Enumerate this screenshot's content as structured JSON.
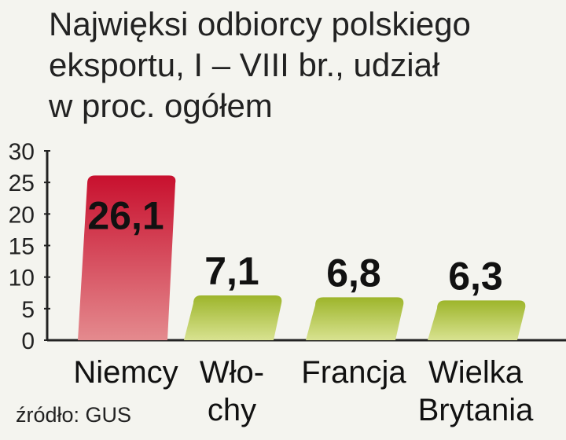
{
  "chart_data": {
    "type": "bar",
    "title": [
      "Najwięksi odbiorcy polskiego",
      "eksportu, I – VIII br., udział",
      "w proc. ogółem"
    ],
    "categories": [
      [
        "Niemcy"
      ],
      [
        "Wło-",
        "chy"
      ],
      [
        "Francja"
      ],
      [
        "Wielka",
        "Brytania"
      ]
    ],
    "values": [
      26.1,
      7.1,
      6.8,
      6.3
    ],
    "value_labels": [
      "26,1",
      "7,1",
      "6,8",
      "6,3"
    ],
    "colors": [
      "#c8102e",
      "#9db52b",
      "#9db52b",
      "#9db52b"
    ],
    "ylim": [
      0,
      30
    ],
    "yticks": [
      0,
      5,
      10,
      15,
      20,
      25,
      30
    ],
    "source": "źródło: GUS"
  }
}
